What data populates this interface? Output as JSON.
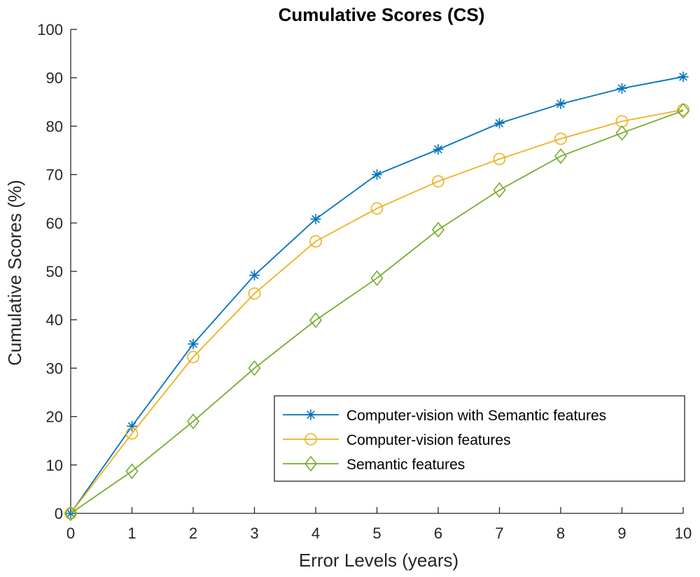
{
  "chart_data": {
    "type": "line",
    "title": "Cumulative Scores (CS)",
    "xlabel": "Error Levels (years)",
    "ylabel": "Cumulative Scores (%)",
    "xlim": [
      0,
      10
    ],
    "ylim": [
      0,
      100
    ],
    "x_ticks": [
      0,
      1,
      2,
      3,
      4,
      5,
      6,
      7,
      8,
      9,
      10
    ],
    "y_ticks": [
      0,
      10,
      20,
      30,
      40,
      50,
      60,
      70,
      80,
      90,
      100
    ],
    "grid": false,
    "legend_position": "bottom-right",
    "x": [
      0,
      1,
      2,
      3,
      4,
      5,
      6,
      7,
      8,
      9,
      10
    ],
    "series": [
      {
        "name": "Computer-vision with Semantic features",
        "marker": "asterisk",
        "color": "#0072BD",
        "values": [
          0,
          18,
          35,
          49.2,
          60.8,
          70,
          75.2,
          80.6,
          84.6,
          87.8,
          90.2
        ]
      },
      {
        "name": "Computer-vision features",
        "marker": "circle",
        "color": "#EDB120",
        "values": [
          0,
          16.5,
          32.3,
          45.4,
          56.2,
          63,
          68.6,
          73.2,
          77.4,
          81,
          83.4
        ]
      },
      {
        "name": "Semantic features",
        "marker": "diamond",
        "color": "#77AC30",
        "values": [
          0,
          8.7,
          19,
          30,
          39.9,
          48.6,
          58.6,
          66.8,
          73.8,
          78.6,
          83.2
        ]
      }
    ]
  }
}
